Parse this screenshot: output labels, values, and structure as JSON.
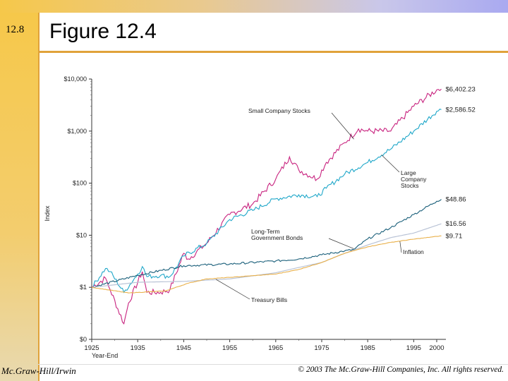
{
  "slide": {
    "number": "12.8",
    "title": "Figure 12.4",
    "footer_left": "Mc.Graw-Hill/Irwin",
    "footer_right": "© 2003 The Mc.Graw-Hill Companies, Inc. All rights reserved."
  },
  "colors": {
    "small": "#c8237f",
    "large": "#1fa7c9",
    "bonds": "#1a5f7a",
    "tbills": "#b9c3d6",
    "inflation": "#e9b04a"
  },
  "chart_data": {
    "type": "line",
    "scale": "log",
    "ylabel": "Index",
    "xlabel": "Year-End",
    "y_ticks": [
      "$10,000",
      "$1,000",
      "$100",
      "$10",
      "$1",
      "$0"
    ],
    "y_tick_values": [
      10000,
      1000,
      100,
      10,
      1,
      0.1
    ],
    "x_ticks": [
      "1925",
      "1935",
      "1945",
      "1955",
      "1965",
      "1975",
      "1985",
      "1995",
      "2000"
    ],
    "x_tick_values": [
      1925,
      1935,
      1945,
      1955,
      1965,
      1975,
      1985,
      1995,
      2000
    ],
    "xlim": [
      1925,
      2002
    ],
    "series": [
      {
        "key": "small",
        "name": "Small Company Stocks",
        "end_label": "$6,402.23",
        "x": [
          1925,
          1928,
          1929,
          1932,
          1933,
          1936,
          1937,
          1940,
          1942,
          1945,
          1946,
          1950,
          1955,
          1960,
          1965,
          1968,
          1970,
          1974,
          1976,
          1980,
          1983,
          1985,
          1990,
          1995,
          2000,
          2001
        ],
        "y": [
          1,
          1.5,
          0.9,
          0.2,
          0.5,
          2.0,
          0.8,
          0.8,
          0.9,
          4.5,
          3.5,
          7,
          25,
          40,
          120,
          320,
          180,
          120,
          250,
          600,
          1100,
          1000,
          1000,
          3000,
          6200,
          6402.23
        ]
      },
      {
        "key": "large",
        "name": "Large Company Stocks",
        "end_label": "$2,586.52",
        "x": [
          1925,
          1928,
          1929,
          1932,
          1935,
          1936,
          1937,
          1940,
          1942,
          1945,
          1950,
          1955,
          1960,
          1965,
          1970,
          1974,
          1976,
          1980,
          1985,
          1990,
          1995,
          2000,
          2001
        ],
        "y": [
          1,
          2.3,
          2.0,
          0.8,
          1.8,
          2.5,
          1.6,
          1.7,
          1.6,
          4.0,
          7,
          20,
          30,
          50,
          60,
          55,
          80,
          150,
          250,
          450,
          1000,
          2400,
          2586.52
        ]
      },
      {
        "key": "bonds",
        "name": "Long-Term Government Bonds",
        "end_label": "$48.86",
        "x": [
          1925,
          1935,
          1945,
          1955,
          1965,
          1970,
          1975,
          1980,
          1982,
          1985,
          1990,
          1995,
          2000,
          2001
        ],
        "y": [
          1,
          1.7,
          2.6,
          2.8,
          3.2,
          3.5,
          4.2,
          5.0,
          5.3,
          8.5,
          14,
          25,
          45,
          48.86
        ]
      },
      {
        "key": "tbills",
        "name": "Treasury Bills",
        "end_label": "$16.56",
        "x": [
          1925,
          1935,
          1945,
          1955,
          1965,
          1970,
          1975,
          1980,
          1985,
          1990,
          1995,
          2000,
          2001
        ],
        "y": [
          1,
          1.25,
          1.3,
          1.45,
          1.9,
          2.4,
          3.0,
          4.5,
          6.5,
          9,
          11,
          15.5,
          16.56
        ]
      },
      {
        "key": "inflation",
        "name": "Inflation",
        "end_label": "$9.71",
        "x": [
          1925,
          1933,
          1941,
          1946,
          1950,
          1955,
          1965,
          1970,
          1975,
          1980,
          1985,
          1990,
          1995,
          2000,
          2001
        ],
        "y": [
          1,
          0.78,
          0.85,
          1.2,
          1.45,
          1.55,
          1.8,
          2.2,
          3.0,
          4.5,
          6.0,
          7.3,
          8.4,
          9.5,
          9.71
        ]
      }
    ],
    "annotations": [
      {
        "key": "small",
        "lines": [
          "Small Company Stocks"
        ],
        "target": [
          1982,
          700
        ]
      },
      {
        "key": "large",
        "lines": [
          "Large",
          "Company",
          "Stocks"
        ],
        "target": [
          1988,
          350
        ]
      },
      {
        "key": "bonds",
        "lines": [
          "Long-Term",
          "Government Bonds"
        ],
        "target": [
          1982,
          5.5
        ]
      },
      {
        "key": "inflation",
        "lines": [
          "Inflation"
        ],
        "target": [
          1992,
          7.6
        ]
      },
      {
        "key": "tbills",
        "lines": [
          "Treasury Bills"
        ],
        "target": [
          1952,
          1.42
        ]
      }
    ]
  }
}
